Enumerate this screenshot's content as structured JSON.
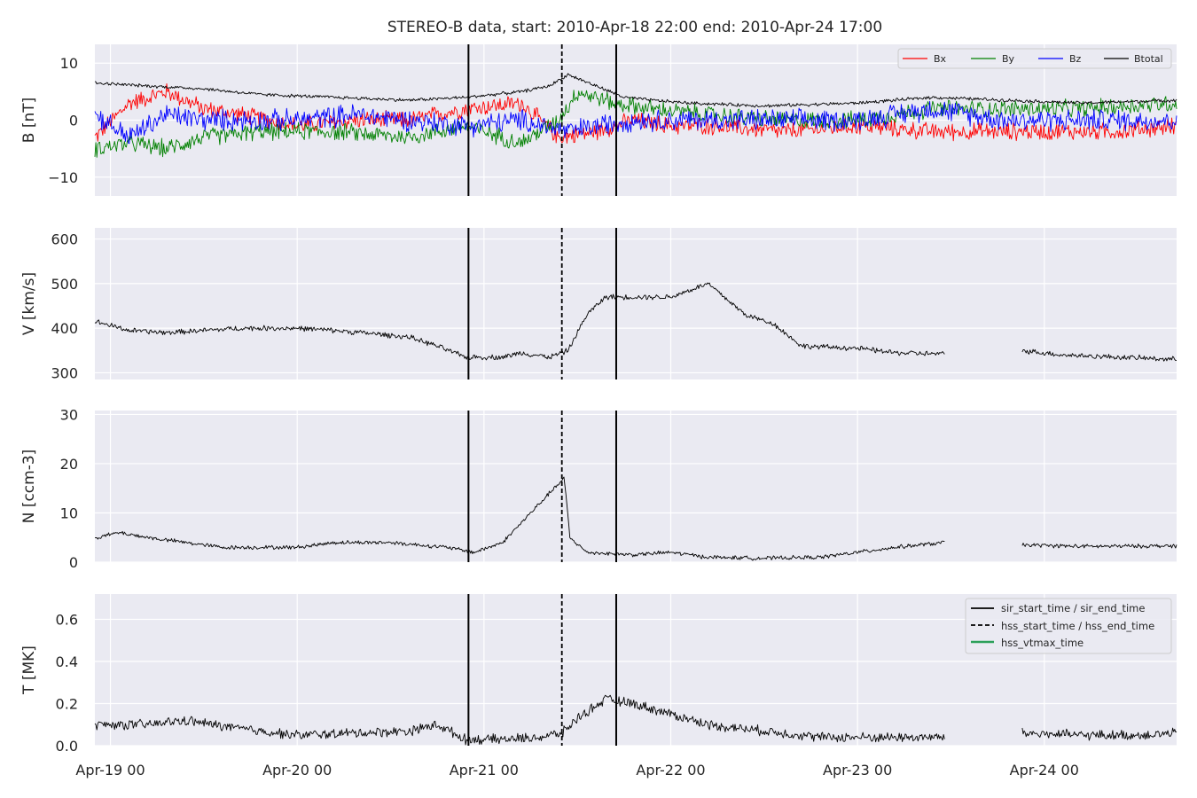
{
  "title": "STEREO-B data, start: 2010-Apr-18 22:00  end: 2010-Apr-24 17:00",
  "x_axis": {
    "start_day": 18.9167,
    "end_day": 24.7083,
    "ticks": [
      {
        "day": 19,
        "label": "Apr-19 00"
      },
      {
        "day": 20,
        "label": "Apr-20 00"
      },
      {
        "day": 21,
        "label": "Apr-21 00"
      },
      {
        "day": 22,
        "label": "Apr-22 00"
      },
      {
        "day": 23,
        "label": "Apr-23 00"
      },
      {
        "day": 24,
        "label": "Apr-24 00"
      }
    ]
  },
  "markers": [
    {
      "kind": "sir",
      "day": 20.917
    },
    {
      "kind": "hss",
      "day": 21.417
    },
    {
      "kind": "sir",
      "day": 21.708
    }
  ],
  "colors": {
    "Bx": "#ff0000",
    "By": "#008000",
    "Bz": "#0000ff",
    "Btotal": "#000000",
    "hss_vtmax": "#2ca05a",
    "panel_bg": "#eaeaf2",
    "grid": "#ffffff"
  },
  "legend_B": {
    "Bx": "Bx",
    "By": "By",
    "Bz": "Bz",
    "Btotal": "Btotal"
  },
  "legend_T": {
    "sir": "sir_start_time / sir_end_time",
    "hss": "hss_start_time / hss_end_time",
    "vtmax": "hss_vtmax_time"
  },
  "chart_data": [
    {
      "type": "line",
      "ylabel": "B [nT]",
      "ylim": [
        -13.3,
        13.3
      ],
      "yticks": [
        {
          "v": 10,
          "label": "10"
        },
        {
          "v": 0,
          "label": "0"
        },
        {
          "v": -10,
          "label": "−10"
        }
      ],
      "gaps": [],
      "series": [
        {
          "name": "Bx",
          "color": "#ff0000",
          "noise": 1.3,
          "points": [
            [
              18.92,
              -3
            ],
            [
              19.1,
              3
            ],
            [
              19.3,
              5
            ],
            [
              19.5,
              2
            ],
            [
              19.7,
              1
            ],
            [
              20.0,
              -1
            ],
            [
              20.3,
              0
            ],
            [
              20.6,
              0
            ],
            [
              20.9,
              2
            ],
            [
              21.2,
              3
            ],
            [
              21.4,
              -3
            ],
            [
              21.6,
              -2
            ],
            [
              21.8,
              0
            ],
            [
              22.0,
              -1
            ],
            [
              22.2,
              -1
            ],
            [
              22.6,
              -2
            ],
            [
              23.0,
              -1
            ],
            [
              23.4,
              -2
            ],
            [
              23.8,
              -2
            ],
            [
              24.1,
              -2
            ],
            [
              24.4,
              -2
            ],
            [
              24.71,
              -1
            ]
          ]
        },
        {
          "name": "By",
          "color": "#008000",
          "noise": 1.3,
          "points": [
            [
              18.92,
              -5
            ],
            [
              19.1,
              -4
            ],
            [
              19.3,
              -5
            ],
            [
              19.5,
              -3
            ],
            [
              19.8,
              -2
            ],
            [
              20.2,
              -2
            ],
            [
              20.6,
              -3
            ],
            [
              20.9,
              -1
            ],
            [
              21.2,
              -4
            ],
            [
              21.4,
              0
            ],
            [
              21.5,
              5
            ],
            [
              21.7,
              3
            ],
            [
              21.9,
              2
            ],
            [
              22.2,
              1
            ],
            [
              22.6,
              0
            ],
            [
              23.0,
              0
            ],
            [
              23.4,
              2
            ],
            [
              23.8,
              2
            ],
            [
              24.2,
              2
            ],
            [
              24.71,
              3
            ]
          ]
        },
        {
          "name": "Bz",
          "color": "#0000ff",
          "noise": 1.6,
          "points": [
            [
              18.92,
              1
            ],
            [
              19.1,
              -3
            ],
            [
              19.3,
              1
            ],
            [
              19.5,
              0
            ],
            [
              20.0,
              0
            ],
            [
              20.3,
              1
            ],
            [
              20.6,
              0
            ],
            [
              20.9,
              -1
            ],
            [
              21.2,
              0
            ],
            [
              21.45,
              -2
            ],
            [
              21.6,
              -1
            ],
            [
              21.8,
              0
            ],
            [
              22.2,
              0
            ],
            [
              22.6,
              0
            ],
            [
              23.0,
              0
            ],
            [
              23.4,
              2
            ],
            [
              23.8,
              0
            ],
            [
              24.2,
              0
            ],
            [
              24.71,
              0
            ]
          ]
        },
        {
          "name": "Btotal",
          "color": "#000000",
          "noise": 0.25,
          "points": [
            [
              18.92,
              6.5
            ],
            [
              19.2,
              6
            ],
            [
              19.5,
              5.5
            ],
            [
              19.8,
              4.5
            ],
            [
              20.2,
              4
            ],
            [
              20.6,
              3.5
            ],
            [
              20.9,
              4
            ],
            [
              21.2,
              5
            ],
            [
              21.35,
              6
            ],
            [
              21.45,
              8
            ],
            [
              21.6,
              6
            ],
            [
              21.75,
              4
            ],
            [
              21.9,
              3.5
            ],
            [
              22.1,
              3
            ],
            [
              22.5,
              2.5
            ],
            [
              23.0,
              3
            ],
            [
              23.4,
              4
            ],
            [
              23.8,
              3.5
            ],
            [
              24.2,
              3
            ],
            [
              24.71,
              3.5
            ]
          ]
        }
      ]
    },
    {
      "type": "line",
      "ylabel": "V [km/s]",
      "ylim": [
        285,
        625
      ],
      "yticks": [
        {
          "v": 600,
          "label": "600"
        },
        {
          "v": 500,
          "label": "500"
        },
        {
          "v": 400,
          "label": "400"
        },
        {
          "v": 300,
          "label": "300"
        }
      ],
      "gaps": [
        [
          23.47,
          23.88
        ]
      ],
      "series": [
        {
          "name": "",
          "color": "#000000",
          "noise": 5,
          "points": [
            [
              18.92,
              415
            ],
            [
              19.1,
              395
            ],
            [
              19.3,
              390
            ],
            [
              19.5,
              395
            ],
            [
              19.7,
              400
            ],
            [
              20.0,
              400
            ],
            [
              20.2,
              395
            ],
            [
              20.4,
              388
            ],
            [
              20.6,
              380
            ],
            [
              20.75,
              360
            ],
            [
              20.9,
              335
            ],
            [
              21.1,
              335
            ],
            [
              21.2,
              345
            ],
            [
              21.35,
              335
            ],
            [
              21.45,
              350
            ],
            [
              21.55,
              430
            ],
            [
              21.65,
              470
            ],
            [
              21.8,
              470
            ],
            [
              22.0,
              470
            ],
            [
              22.2,
              500
            ],
            [
              22.4,
              430
            ],
            [
              22.55,
              410
            ],
            [
              22.7,
              360
            ],
            [
              23.0,
              355
            ],
            [
              23.2,
              345
            ],
            [
              23.47,
              342
            ],
            [
              23.88,
              350
            ],
            [
              24.1,
              340
            ],
            [
              24.4,
              335
            ],
            [
              24.71,
              330
            ]
          ]
        }
      ]
    },
    {
      "type": "line",
      "ylabel": "N [ccm-3]",
      "ylim": [
        0,
        30.8
      ],
      "yticks": [
        {
          "v": 30,
          "label": "30"
        },
        {
          "v": 20,
          "label": "20"
        },
        {
          "v": 10,
          "label": "10"
        },
        {
          "v": 0,
          "label": "0"
        }
      ],
      "gaps": [
        [
          23.47,
          23.88
        ]
      ],
      "series": [
        {
          "name": "",
          "color": "#000000",
          "noise": 0.35,
          "points": [
            [
              18.92,
              5
            ],
            [
              19.05,
              6
            ],
            [
              19.2,
              5
            ],
            [
              19.4,
              4
            ],
            [
              19.6,
              3
            ],
            [
              20.0,
              3
            ],
            [
              20.2,
              4
            ],
            [
              20.5,
              4
            ],
            [
              20.8,
              3
            ],
            [
              20.95,
              2
            ],
            [
              21.1,
              4
            ],
            [
              21.25,
              10
            ],
            [
              21.35,
              14
            ],
            [
              21.43,
              17
            ],
            [
              21.46,
              5
            ],
            [
              21.55,
              2
            ],
            [
              21.8,
              1.5
            ],
            [
              22.0,
              2
            ],
            [
              22.2,
              1
            ],
            [
              22.5,
              0.8
            ],
            [
              22.8,
              1
            ],
            [
              23.0,
              2
            ],
            [
              23.2,
              3
            ],
            [
              23.47,
              4
            ],
            [
              23.88,
              3.5
            ],
            [
              24.2,
              3.2
            ],
            [
              24.71,
              3.3
            ]
          ]
        }
      ]
    },
    {
      "type": "line",
      "ylabel": "T [MK]",
      "ylim": [
        0,
        0.72
      ],
      "yticks": [
        {
          "v": 0.6,
          "label": "0.6"
        },
        {
          "v": 0.4,
          "label": "0.4"
        },
        {
          "v": 0.2,
          "label": "0.2"
        },
        {
          "v": 0.0,
          "label": "0.0"
        }
      ],
      "gaps": [
        [
          23.47,
          23.88
        ]
      ],
      "series": [
        {
          "name": "",
          "color": "#000000",
          "noise": 0.02,
          "points": [
            [
              18.92,
              0.1
            ],
            [
              19.2,
              0.1
            ],
            [
              19.4,
              0.12
            ],
            [
              19.7,
              0.08
            ],
            [
              20.0,
              0.05
            ],
            [
              20.3,
              0.06
            ],
            [
              20.6,
              0.07
            ],
            [
              20.75,
              0.1
            ],
            [
              20.9,
              0.03
            ],
            [
              21.1,
              0.03
            ],
            [
              21.3,
              0.04
            ],
            [
              21.42,
              0.06
            ],
            [
              21.5,
              0.13
            ],
            [
              21.65,
              0.22
            ],
            [
              21.8,
              0.2
            ],
            [
              22.0,
              0.15
            ],
            [
              22.2,
              0.1
            ],
            [
              22.4,
              0.08
            ],
            [
              22.6,
              0.06
            ],
            [
              22.8,
              0.04
            ],
            [
              23.0,
              0.04
            ],
            [
              23.47,
              0.04
            ],
            [
              23.88,
              0.06
            ],
            [
              24.2,
              0.05
            ],
            [
              24.5,
              0.05
            ],
            [
              24.71,
              0.06
            ]
          ]
        }
      ]
    }
  ]
}
